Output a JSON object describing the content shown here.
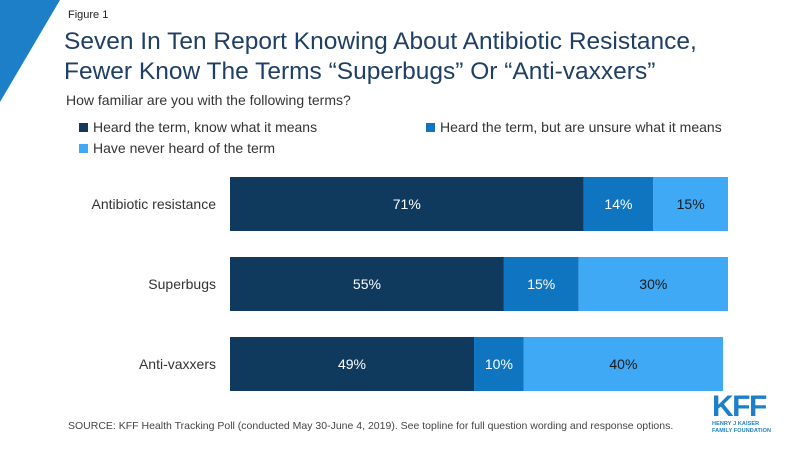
{
  "figure_label": "Figure 1",
  "title_line1": "Seven In Ten Report Knowing About Antibiotic Resistance,",
  "title_line2": "Fewer Know The Terms “Superbugs” Or “Anti-vaxxers”",
  "subtitle": "How familiar are you with the following terms?",
  "source": "SOURCE: KFF Health Tracking Poll (conducted May 30-June 4, 2019). See topline for full question wording and response options.",
  "logo": {
    "word": "KFF",
    "line1": "HENRY J KAISER",
    "line2": "FAMILY FOUNDATION"
  },
  "colors": {
    "accent": "#1c7fc8",
    "title": "#1f3f63"
  },
  "chart_data": {
    "type": "bar",
    "orientation": "horizontal",
    "stacked": true,
    "categories": [
      "Antibiotic resistance",
      "Superbugs",
      "Anti-vaxxers"
    ],
    "series": [
      {
        "name": "Heard the term, know what it means",
        "color": "#0f3a5e",
        "values": [
          71,
          55,
          49
        ],
        "labels": [
          "71%",
          "55%",
          "49%"
        ]
      },
      {
        "name": "Heard the term, but are unsure what it means",
        "color": "#0f75c0",
        "values": [
          14,
          15,
          10
        ],
        "labels": [
          "14%",
          "15%",
          "10%"
        ]
      },
      {
        "name": "Have never heard of the term",
        "color": "#3fa9f5",
        "values": [
          15,
          30,
          40
        ],
        "labels": [
          "15%",
          "30%",
          "40%"
        ]
      }
    ],
    "legend_placement": "top",
    "grid": false,
    "xlim": [
      0,
      100
    ]
  }
}
